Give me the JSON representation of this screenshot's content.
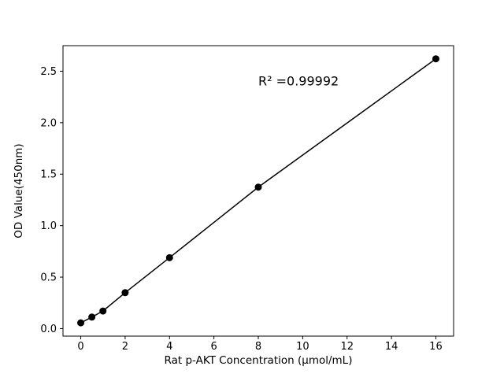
{
  "figure": {
    "background": "#ffffff",
    "foreground": "#000000"
  },
  "chart_data": {
    "type": "scatter",
    "title": "",
    "xlabel": "Rat p-AKT Concentration (μmol/mL)",
    "ylabel": "OD Value(450nm)",
    "x": [
      0,
      0.5,
      1,
      2,
      4,
      8,
      16
    ],
    "y": [
      0.056,
      0.112,
      0.171,
      0.349,
      0.689,
      1.374,
      2.62
    ],
    "has_fit_line": true,
    "marker": "circle",
    "marker_color": "#000000",
    "line_color": "#000000",
    "xlim": [
      -0.8,
      16.8
    ],
    "ylim": [
      -0.073,
      2.748
    ],
    "xticks": [
      0,
      2,
      4,
      6,
      8,
      10,
      12,
      14,
      16
    ],
    "xtick_labels": [
      "0",
      "2",
      "4",
      "6",
      "8",
      "10",
      "12",
      "14",
      "16"
    ],
    "yticks": [
      0,
      0.5,
      1.0,
      1.5,
      2.0,
      2.5
    ],
    "ytick_labels": [
      "0.0",
      "0.5",
      "1.0",
      "1.5",
      "2.0",
      "2.5"
    ],
    "annotation": {
      "text": "R² =0.99992",
      "x": 8,
      "y": 2.4
    },
    "grid": false,
    "legend": null
  }
}
